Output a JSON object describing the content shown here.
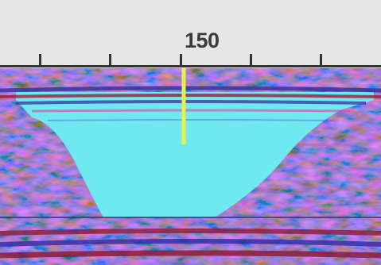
{
  "axis": {
    "tick_label": "150"
  },
  "colors": {
    "background": "#e6e6e6",
    "section_cyan": "#6fe8ef",
    "positive_red": "#8a1630",
    "negative_blue": "#2f2aa8",
    "trace_marker": "#e8f04a"
  },
  "icons": {
    "trace_marker": "vertical-trace-marker"
  }
}
